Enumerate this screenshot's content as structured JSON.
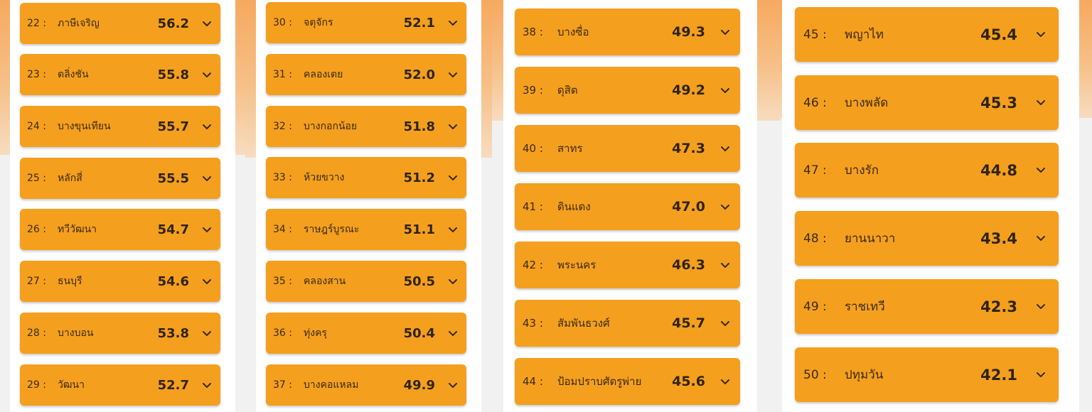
{
  "colors": {
    "row_bg": "#f59f1e",
    "panel_bg": "#ffffff",
    "page_bg": "#f1f1f1",
    "band": "#f6a95f"
  },
  "icons": {
    "expand": "chevron-down-icon"
  },
  "columns": [
    {
      "items": [
        {
          "rank": "22 :",
          "name": "ภาษีเจริญ",
          "score": "56.2"
        },
        {
          "rank": "23 :",
          "name": "ตลิ่งชัน",
          "score": "55.8"
        },
        {
          "rank": "24 :",
          "name": "บางขุนเทียน",
          "score": "55.7"
        },
        {
          "rank": "25 :",
          "name": "หลักสี่",
          "score": "55.5"
        },
        {
          "rank": "26 :",
          "name": "ทวีวัฒนา",
          "score": "54.7"
        },
        {
          "rank": "27 :",
          "name": "ธนบุรี",
          "score": "54.6"
        },
        {
          "rank": "28 :",
          "name": "บางบอน",
          "score": "53.8"
        },
        {
          "rank": "29 :",
          "name": "วัฒนา",
          "score": "52.7"
        }
      ]
    },
    {
      "items": [
        {
          "rank": "30 :",
          "name": "จตุจักร",
          "score": "52.1"
        },
        {
          "rank": "31 :",
          "name": "คลองเตย",
          "score": "52.0"
        },
        {
          "rank": "32 :",
          "name": "บางกอกน้อย",
          "score": "51.8"
        },
        {
          "rank": "33 :",
          "name": "ห้วยขวาง",
          "score": "51.2"
        },
        {
          "rank": "34 :",
          "name": "ราษฎร์บูรณะ",
          "score": "51.1"
        },
        {
          "rank": "35 :",
          "name": "คลองสาน",
          "score": "50.5"
        },
        {
          "rank": "36 :",
          "name": "ทุ่งครุ",
          "score": "50.4"
        },
        {
          "rank": "37 :",
          "name": "บางคอแหลม",
          "score": "49.9"
        }
      ]
    },
    {
      "items": [
        {
          "rank": "38 :",
          "name": "บางซื่อ",
          "score": "49.3"
        },
        {
          "rank": "39 :",
          "name": "ดุสิต",
          "score": "49.2"
        },
        {
          "rank": "40 :",
          "name": "สาทร",
          "score": "47.3"
        },
        {
          "rank": "41 :",
          "name": "ดินแดง",
          "score": "47.0"
        },
        {
          "rank": "42 :",
          "name": "พระนคร",
          "score": "46.3"
        },
        {
          "rank": "43 :",
          "name": "สัมพันธวงศ์",
          "score": "45.7"
        },
        {
          "rank": "44 :",
          "name": "ป้อมปราบศัตรูพ่าย",
          "score": "45.6"
        }
      ]
    },
    {
      "items": [
        {
          "rank": "45 :",
          "name": "พญาไท",
          "score": "45.4"
        },
        {
          "rank": "46 :",
          "name": "บางพลัด",
          "score": "45.3"
        },
        {
          "rank": "47 :",
          "name": "บางรัก",
          "score": "44.8"
        },
        {
          "rank": "48 :",
          "name": "ยานนาวา",
          "score": "43.4"
        },
        {
          "rank": "49 :",
          "name": "ราชเทวี",
          "score": "42.3"
        },
        {
          "rank": "50 :",
          "name": "ปทุมวัน",
          "score": "42.1"
        }
      ]
    }
  ]
}
